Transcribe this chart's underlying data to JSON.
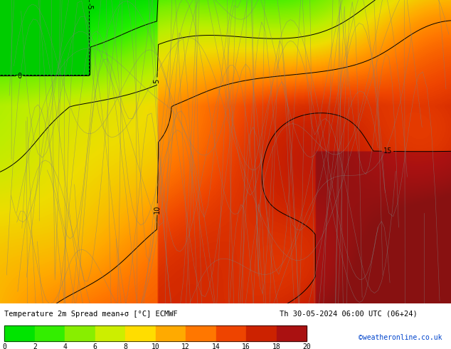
{
  "title_left": "Temperature 2m Spread mean+σ [°C] ECMWF",
  "title_right": "Th 30-05-2024 06:00 UTC (06+24)",
  "credit": "©weatheronline.co.uk",
  "colorbar_ticks": [
    0,
    2,
    4,
    6,
    8,
    10,
    12,
    14,
    16,
    18,
    20
  ],
  "colorbar_colors": [
    "#00e400",
    "#33ee00",
    "#88ee00",
    "#ccee00",
    "#ffdd00",
    "#ffaa00",
    "#ff7700",
    "#ee4400",
    "#cc2200",
    "#aa1111",
    "#881111"
  ],
  "background_color": "#00cc00",
  "map_colors": {
    "deep_green": "#00bb00",
    "light_green": "#33dd33",
    "yellow_green": "#aaee00",
    "yellow": "#ffee00",
    "orange": "#ff8800",
    "red_orange": "#ee4400",
    "dark_red": "#cc1100"
  },
  "bottom_bar_height": 0.13,
  "fig_width": 6.34,
  "fig_height": 4.9,
  "dpi": 100
}
